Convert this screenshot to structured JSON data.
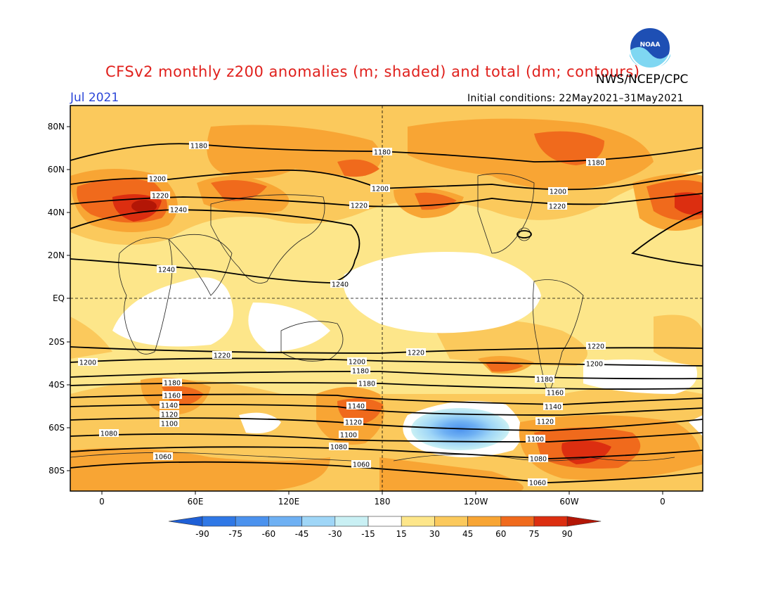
{
  "header": {
    "title": "CFSv2 monthly z200 anomalies (m; shaded) and total (dm; contours)",
    "agency": "NWS/NCEP/CPC",
    "month": "Jul 2021",
    "initial_conditions": "Initial conditions: 22May2021–31May2021",
    "logo_text": "NOAA"
  },
  "map": {
    "lat_labels": [
      "80N",
      "60N",
      "40N",
      "20N",
      "EQ",
      "20S",
      "40S",
      "60S",
      "80S"
    ],
    "lon_labels": [
      "0",
      "60E",
      "120E",
      "180",
      "120W",
      "60W",
      "0"
    ],
    "contour_labels": [
      "1180",
      "1180",
      "1180",
      "1200",
      "1200",
      "1200",
      "1220",
      "1220",
      "1220",
      "1240",
      "1240",
      "1240",
      "1220",
      "1220",
      "1220",
      "1200",
      "1200",
      "1200",
      "1180",
      "1180",
      "1180",
      "1160",
      "1140",
      "1120",
      "1100",
      "1080",
      "1060",
      "1180",
      "1160",
      "1140",
      "1120",
      "1100",
      "1080",
      "1060",
      "1140",
      "1120",
      "1100",
      "1080",
      "1060",
      "1100",
      "1080",
      "1060",
      "1160",
      "1140"
    ]
  },
  "colorbar": {
    "labels": [
      "-90",
      "-75",
      "-60",
      "-45",
      "-30",
      "-15",
      "15",
      "30",
      "45",
      "60",
      "75",
      "90"
    ],
    "colors": [
      "#1e5fd6",
      "#2f78e6",
      "#4b92ee",
      "#6eb0f3",
      "#9fd6f7",
      "#c9f0f4",
      "#ffffff",
      "#fde68a",
      "#fbc95c",
      "#f8a534",
      "#f06a1c",
      "#dc2e10",
      "#b31606"
    ]
  }
}
